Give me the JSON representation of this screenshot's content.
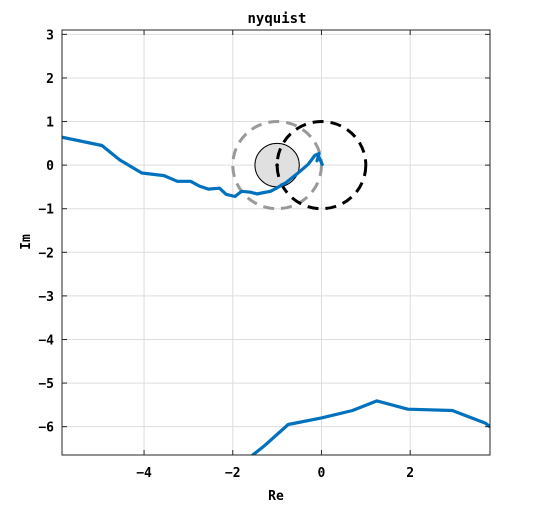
{
  "chart_data": {
    "type": "line",
    "title": "nyquist",
    "xlabel": "Re",
    "ylabel": "Im",
    "xlim": [
      -5.85,
      3.8
    ],
    "ylim": [
      -6.65,
      3.1
    ],
    "xticks": [
      -4,
      -2,
      0,
      2
    ],
    "yticks": [
      3,
      2,
      1,
      0,
      -1,
      -2,
      -3,
      -4,
      -5,
      -6
    ],
    "xtick_labels": [
      "−4",
      "−2",
      "0",
      "2"
    ],
    "ytick_labels": [
      "3",
      "2",
      "1",
      "0",
      "−1",
      "−2",
      "−3",
      "−4",
      "−5",
      "−6"
    ],
    "grid": true,
    "colors": {
      "curve": "#0072BD",
      "unit_circle": "#000000",
      "dashed_gray_circle": "#999999",
      "filled_disk": "#e0e0e0",
      "grid": "#dddddd"
    },
    "series": [
      {
        "style": "solid",
        "segments": [
          [
            [
              -5.85,
              0.64
            ],
            [
              -4.95,
              0.45
            ],
            [
              -4.55,
              0.12
            ],
            [
              -4.05,
              -0.18
            ],
            [
              -3.55,
              -0.24
            ],
            [
              -3.25,
              -0.37
            ],
            [
              -2.95,
              -0.37
            ],
            [
              -2.75,
              -0.48
            ],
            [
              -2.55,
              -0.55
            ],
            [
              -2.3,
              -0.53
            ],
            [
              -2.15,
              -0.67
            ],
            [
              -1.95,
              -0.72
            ],
            [
              -1.8,
              -0.6
            ],
            [
              -1.6,
              -0.62
            ],
            [
              -1.45,
              -0.66
            ],
            [
              -1.35,
              -0.64
            ],
            [
              -1.15,
              -0.6
            ],
            [
              -1.0,
              -0.52
            ],
            [
              -0.8,
              -0.4
            ],
            [
              -0.55,
              -0.2
            ],
            [
              -0.3,
              0.02
            ],
            [
              -0.15,
              0.22
            ],
            [
              -0.05,
              0.27
            ],
            [
              -0.1,
              0.1
            ],
            [
              -0.05,
              0.18
            ],
            [
              0.0,
              0.05
            ],
            [
              0.02,
              0.02
            ]
          ],
          [
            [
              -1.55,
              -6.65
            ],
            [
              -1.3,
              -6.45
            ],
            [
              -0.75,
              -5.95
            ],
            [
              0.0,
              -5.8
            ],
            [
              0.7,
              -5.63
            ],
            [
              1.25,
              -5.41
            ],
            [
              1.95,
              -5.6
            ],
            [
              2.95,
              -5.63
            ],
            [
              3.7,
              -5.92
            ],
            [
              3.8,
              -6.0
            ]
          ]
        ]
      }
    ],
    "circles": [
      {
        "name": "unit circle",
        "center": [
          0,
          0
        ],
        "radius": 1,
        "style": "dashed"
      },
      {
        "name": "gray dashed circle",
        "center": [
          -1,
          0
        ],
        "radius": 1,
        "style": "dashed"
      },
      {
        "name": "filled disk",
        "center": [
          -1,
          0
        ],
        "radius": 0.5,
        "style": "filled"
      }
    ]
  }
}
